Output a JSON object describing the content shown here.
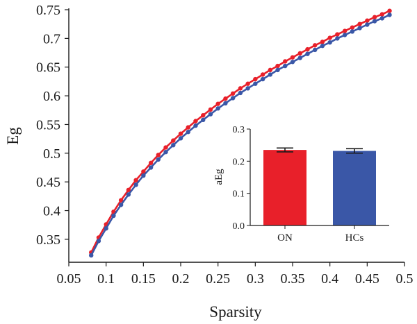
{
  "chart_data": [
    {
      "type": "line",
      "xlabel": "Sparsity",
      "ylabel": "Eg",
      "xlim": [
        0.05,
        0.5
      ],
      "ylim": [
        0.31,
        0.75
      ],
      "xticks": [
        0.05,
        0.1,
        0.15,
        0.2,
        0.25,
        0.3,
        0.35,
        0.4,
        0.45,
        0.5
      ],
      "xtick_labels": [
        "0.05",
        "0.1",
        "0.15",
        "0.2",
        "0.25",
        "0.3",
        "0.35",
        "0.4",
        "0.45",
        "0.5"
      ],
      "yticks": [
        0.35,
        0.4,
        0.45,
        0.5,
        0.55,
        0.6,
        0.65,
        0.7,
        0.75
      ],
      "ytick_labels": [
        "0.35",
        "0.4",
        "0.45",
        "0.5",
        "0.55",
        "0.6",
        "0.65",
        "0.7",
        "0.75"
      ],
      "x": [
        0.08,
        0.09,
        0.1,
        0.11,
        0.12,
        0.13,
        0.14,
        0.15,
        0.16,
        0.17,
        0.18,
        0.19,
        0.2,
        0.21,
        0.22,
        0.23,
        0.24,
        0.25,
        0.26,
        0.27,
        0.28,
        0.29,
        0.3,
        0.31,
        0.32,
        0.33,
        0.34,
        0.35,
        0.36,
        0.37,
        0.38,
        0.39,
        0.4,
        0.41,
        0.42,
        0.43,
        0.44,
        0.45,
        0.46,
        0.47,
        0.48
      ],
      "series": [
        {
          "color": "#e8202a",
          "values": [
            0.327,
            0.353,
            0.376,
            0.398,
            0.418,
            0.436,
            0.453,
            0.468,
            0.483,
            0.497,
            0.51,
            0.522,
            0.534,
            0.545,
            0.556,
            0.566,
            0.576,
            0.586,
            0.595,
            0.604,
            0.613,
            0.621,
            0.629,
            0.637,
            0.645,
            0.652,
            0.66,
            0.667,
            0.674,
            0.681,
            0.688,
            0.694,
            0.701,
            0.707,
            0.713,
            0.719,
            0.725,
            0.731,
            0.737,
            0.742,
            0.748
          ]
        },
        {
          "color": "#3a57a7",
          "values": [
            0.322,
            0.347,
            0.369,
            0.391,
            0.41,
            0.428,
            0.445,
            0.461,
            0.475,
            0.489,
            0.502,
            0.514,
            0.526,
            0.537,
            0.548,
            0.558,
            0.568,
            0.578,
            0.587,
            0.596,
            0.605,
            0.613,
            0.621,
            0.629,
            0.637,
            0.645,
            0.652,
            0.659,
            0.666,
            0.673,
            0.68,
            0.687,
            0.693,
            0.7,
            0.706,
            0.712,
            0.718,
            0.724,
            0.73,
            0.735,
            0.741
          ]
        }
      ],
      "markers": "circle",
      "grid": false
    },
    {
      "type": "bar",
      "categories": [
        "ON",
        "HCs"
      ],
      "values": [
        0.235,
        0.232
      ],
      "errors": [
        0.006,
        0.007
      ],
      "colors": [
        "#e8202a",
        "#3a57a7"
      ],
      "ylabel": "aEg",
      "ylim": [
        0,
        0.3
      ],
      "yticks": [
        0.0,
        0.1,
        0.2,
        0.3
      ],
      "ytick_labels": [
        "0.0",
        "0.1",
        "0.2",
        "0.3"
      ],
      "placement": "inset lower-right",
      "grid": false
    }
  ]
}
